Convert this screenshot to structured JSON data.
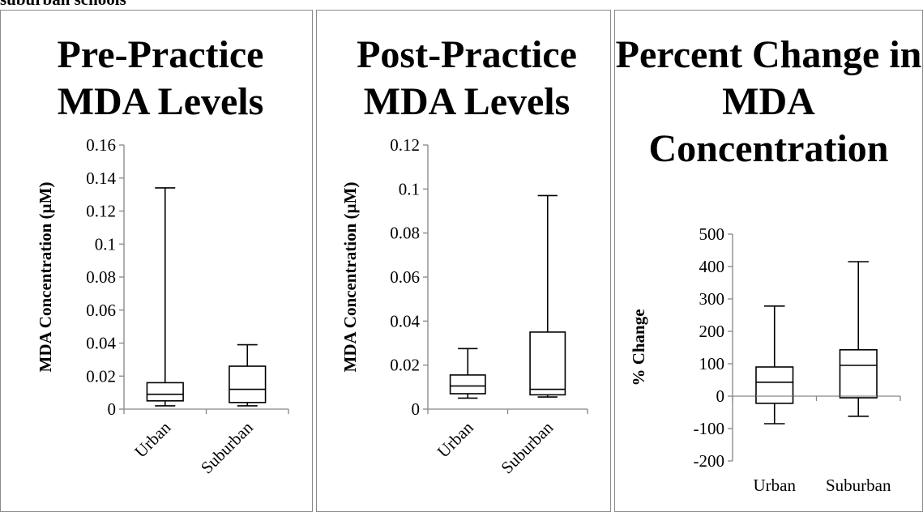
{
  "caption": "suburban schools",
  "chart_data": [
    {
      "type": "box",
      "title": "Pre-Practice MDA Levels",
      "xlabel": "",
      "ylabel": "MDA Concentration (µM)",
      "ylim": [
        0,
        0.16
      ],
      "yticks": [
        0,
        0.02,
        0.04,
        0.06,
        0.08,
        0.1,
        0.12,
        0.14,
        0.16
      ],
      "ytick_labels": [
        "0",
        "0.02",
        "0.04",
        "0.06",
        "0.08",
        "0.1",
        "0.12",
        "0.14",
        "0.16"
      ],
      "categories": [
        "Urban",
        "Suburban"
      ],
      "x_label_rotation": "diagonal",
      "boxes": [
        {
          "category": "Urban",
          "min": 0.002,
          "q1": 0.005,
          "median": 0.009,
          "q3": 0.016,
          "max": 0.134
        },
        {
          "category": "Suburban",
          "min": 0.002,
          "q1": 0.004,
          "median": 0.012,
          "q3": 0.026,
          "max": 0.039
        }
      ]
    },
    {
      "type": "box",
      "title": "Post-Practice MDA Levels",
      "xlabel": "",
      "ylabel": "MDA Concentration (µM)",
      "ylim": [
        0,
        0.12
      ],
      "yticks": [
        0,
        0.02,
        0.04,
        0.06,
        0.08,
        0.1,
        0.12
      ],
      "ytick_labels": [
        "0",
        "0.02",
        "0.04",
        "0.06",
        "0.08",
        "0.1",
        "0.12"
      ],
      "categories": [
        "Urban",
        "Suburban"
      ],
      "x_label_rotation": "diagonal",
      "boxes": [
        {
          "category": "Urban",
          "min": 0.005,
          "q1": 0.007,
          "median": 0.0105,
          "q3": 0.0155,
          "max": 0.0275
        },
        {
          "category": "Suburban",
          "min": 0.0055,
          "q1": 0.0065,
          "median": 0.009,
          "q3": 0.035,
          "max": 0.097
        }
      ]
    },
    {
      "type": "box",
      "title": "Percent Change in MDA Concentration",
      "xlabel": "",
      "ylabel": "% Change",
      "ylim": [
        -200,
        500
      ],
      "yticks": [
        -200,
        -100,
        0,
        100,
        200,
        300,
        400,
        500
      ],
      "ytick_labels": [
        "-200",
        "-100",
        "0",
        "100",
        "200",
        "300",
        "400",
        "500"
      ],
      "categories": [
        "Urban",
        "Suburban"
      ],
      "x_label_rotation": "none",
      "boxes": [
        {
          "category": "Urban",
          "min": -85,
          "q1": -22,
          "median": 43,
          "q3": 90,
          "max": 278
        },
        {
          "category": "Suburban",
          "min": -62,
          "q1": -5,
          "median": 95,
          "q3": 143,
          "max": 415
        }
      ]
    }
  ]
}
